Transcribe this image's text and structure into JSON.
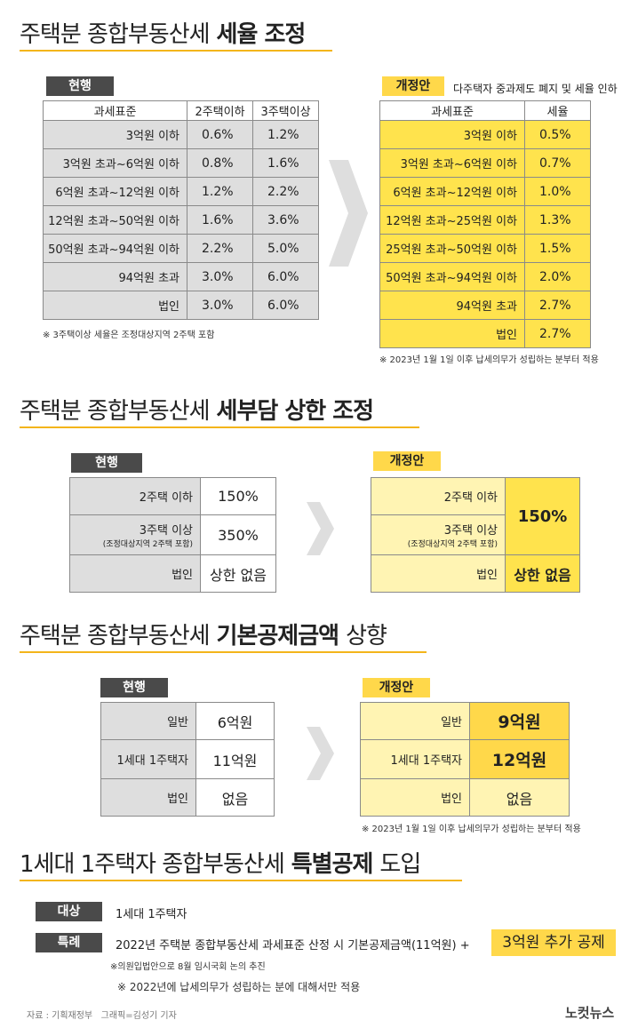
{
  "sections": [
    {
      "title": {
        "plain": "주택분 종합부동산세",
        "bold": "세율 조정"
      },
      "current": {
        "badge": "현행",
        "headers": [
          "과세표준",
          "2주택이하",
          "3주택이상"
        ],
        "rows": [
          [
            "3억원 이하",
            "0.6%",
            "1.2%"
          ],
          [
            "3억원 초과~6억원 이하",
            "0.8%",
            "1.6%"
          ],
          [
            "6억원 초과~12억원 이하",
            "1.2%",
            "2.2%"
          ],
          [
            "12억원 초과~50억원 이하",
            "1.6%",
            "3.6%"
          ],
          [
            "50억원 초과~94억원 이하",
            "2.2%",
            "5.0%"
          ],
          [
            "94억원 초과",
            "3.0%",
            "6.0%"
          ],
          [
            "법인",
            "3.0%",
            "6.0%"
          ]
        ],
        "note": "※ 3주택이상 세율은 조정대상지역 2주택 포함"
      },
      "proposal": {
        "badge": "개정안",
        "caption": "다주택자 중과제도 폐지 및 세율 인하",
        "headers": [
          "과세표준",
          "세율"
        ],
        "rows": [
          [
            "3억원 이하",
            "0.5%"
          ],
          [
            "3억원 초과~6억원 이하",
            "0.7%"
          ],
          [
            "6억원 초과~12억원 이하",
            "1.0%"
          ],
          [
            "12억원 초과~25억원 이하",
            "1.3%"
          ],
          [
            "25억원 초과~50억원 이하",
            "1.5%"
          ],
          [
            "50억원 초과~94억원 이하",
            "2.0%"
          ],
          [
            "94억원 초과",
            "2.7%"
          ],
          [
            "법인",
            "2.7%"
          ]
        ],
        "note": "※ 2023년 1월 1일 이후 납세의무가 성립하는 분부터 적용"
      }
    },
    {
      "title": {
        "plain": "주택분 종합부동산세",
        "bold": "세부담 상한 조정"
      },
      "current": {
        "badge": "현행",
        "rows": [
          {
            "label": "2주택 이하",
            "value": "150%"
          },
          {
            "label": "3주택 이상",
            "sub": "(조정대상지역 2주택 포함)",
            "value": "350%"
          },
          {
            "label": "법인",
            "value": "상한 없음"
          }
        ]
      },
      "proposal": {
        "badge": "개정안",
        "merged_value": "150%",
        "rows": [
          {
            "label": "2주택 이하"
          },
          {
            "label": "3주택 이상",
            "sub": "(조정대상지역 2주택 포함)"
          },
          {
            "label": "법인",
            "value": "상한 없음"
          }
        ]
      }
    },
    {
      "title": {
        "plain": "주택분 종합부동산세",
        "bold": "기본공제금액",
        "tail": "상향"
      },
      "current": {
        "badge": "현행",
        "rows": [
          {
            "label": "일반",
            "value": "6억원"
          },
          {
            "label": "1세대 1주택자",
            "value": "11억원"
          },
          {
            "label": "법인",
            "value": "없음"
          }
        ]
      },
      "proposal": {
        "badge": "개정안",
        "rows": [
          {
            "label": "일반",
            "value": "9억원"
          },
          {
            "label": "1세대 1주택자",
            "value": "12억원"
          },
          {
            "label": "법인",
            "value": "없음"
          }
        ],
        "note": "※ 2023년 1월 1일 이후 납세의무가 성립하는 분부터 적용"
      }
    },
    {
      "title": {
        "plain": "1세대 1주택자 종합부동산세",
        "bold": "특별공제",
        "tail": "도입"
      },
      "items": [
        {
          "label": "대상",
          "text": "1세대 1주택자"
        },
        {
          "label": "특례",
          "text": "2022년 주택분 종합부동산세 과세표준 산정 시 기본공제금액(11억원) +",
          "highlight": "3억원 추가 공제"
        }
      ],
      "notes": [
        "※의원입법안으로 8월 임시국회 논의 추진",
        "※ 2022년에 납세의무가 성립하는 분에 대해서만 적용"
      ]
    }
  ],
  "footer": {
    "source": "자료 : 기획재정부   그래픽=김성기 기자",
    "logo": "노컷뉴스"
  }
}
